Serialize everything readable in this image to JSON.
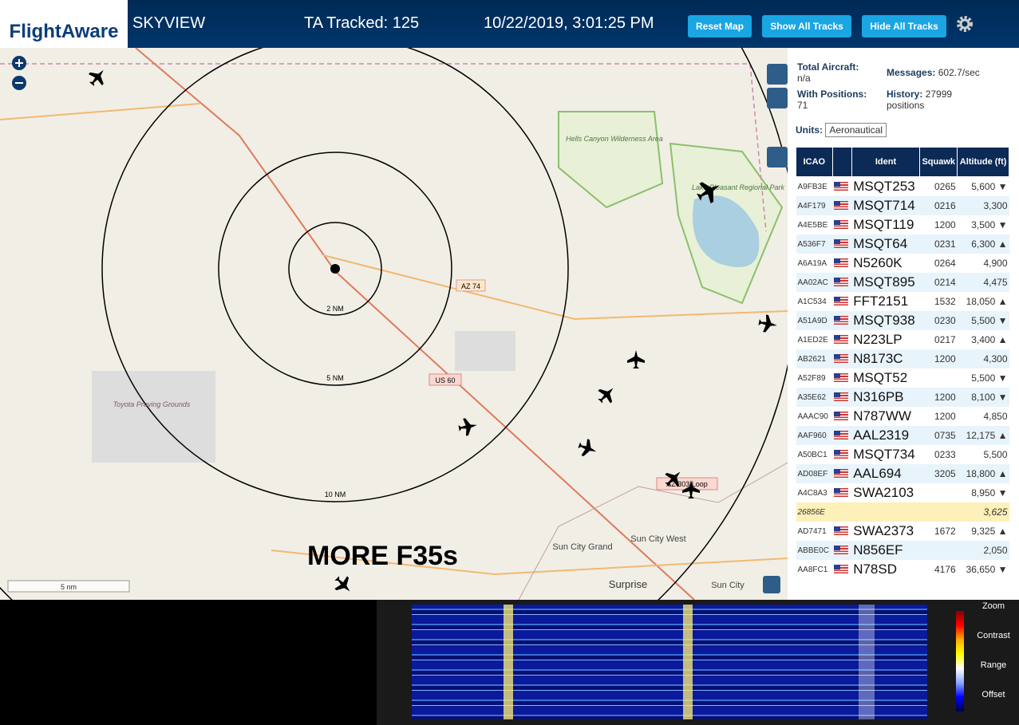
{
  "header": {
    "logo": "FlightAware",
    "app": "SKYVIEW",
    "tracked": "TA Tracked: 125",
    "datetime": "10/22/2019, 3:01:25 PM",
    "buttons": [
      "Reset Map",
      "Show All Tracks",
      "Hide All Tracks"
    ]
  },
  "map": {
    "labels": [
      "2 NM",
      "5 NM",
      "10 NM",
      "AZ 74",
      "US 60",
      "Hells Canyon Wilderness Area",
      "Lake Pleasant Regional Park",
      "Toyota Proving Grounds",
      "Sun City Grand",
      "Sun City West",
      "Surprise",
      "Sun City",
      "AZ 303 Loop",
      "MORE F35s",
      "5 nm"
    ]
  },
  "stats": {
    "total_label": "Total Aircraft:",
    "total": "n/a",
    "positions_label": "With Positions:",
    "positions": "71",
    "messages_label": "Messages:",
    "messages": "602.7/sec",
    "history_label": "History:",
    "history": "27999 positions",
    "units_label": "Units:",
    "units": "Aeronautical"
  },
  "table": {
    "columns": [
      "ICAO",
      "Ident",
      "Squawk",
      "Altitude (ft)"
    ],
    "rows": [
      {
        "icao": "A9FB3E",
        "ident": "MSQT253",
        "squawk": "0265",
        "altitude": "5,600",
        "trend": "▼"
      },
      {
        "icao": "A4F179",
        "ident": "MSQT714",
        "squawk": "0216",
        "altitude": "3,300"
      },
      {
        "icao": "A4E5BE",
        "ident": "MSQT119",
        "squawk": "1200",
        "altitude": "3,500",
        "trend": "▼"
      },
      {
        "icao": "A536F7",
        "ident": "MSQT64",
        "squawk": "0231",
        "altitude": "6,300",
        "trend": "▲"
      },
      {
        "icao": "A6A19A",
        "ident": "N5260K",
        "squawk": "0264",
        "altitude": "4,900"
      },
      {
        "icao": "AA02AC",
        "ident": "MSQT895",
        "squawk": "0214",
        "altitude": "4,475"
      },
      {
        "icao": "A1C534",
        "ident": "FFT2151",
        "squawk": "1532",
        "altitude": "18,050",
        "trend": "▲"
      },
      {
        "icao": "A51A9D",
        "ident": "MSQT938",
        "squawk": "0230",
        "altitude": "5,500",
        "trend": "▼"
      },
      {
        "icao": "A1ED2E",
        "ident": "N223LP",
        "squawk": "0217",
        "altitude": "3,400",
        "trend": "▲"
      },
      {
        "icao": "AB2621",
        "ident": "N8173C",
        "squawk": "1200",
        "altitude": "4,300"
      },
      {
        "icao": "A52F89",
        "ident": "MSQT52",
        "altitude": "5,500",
        "trend": "▼"
      },
      {
        "icao": "A35E62",
        "ident": "N316PB",
        "squawk": "1200",
        "altitude": "8,100",
        "trend": "▼"
      },
      {
        "icao": "AAAC90",
        "ident": "N787WW",
        "squawk": "1200",
        "altitude": "4,850"
      },
      {
        "icao": "AAF960",
        "ident": "AAL2319",
        "squawk": "0735",
        "altitude": "12,175",
        "trend": "▲"
      },
      {
        "icao": "A50BC1",
        "ident": "MSQT734",
        "squawk": "0233",
        "altitude": "5,500"
      },
      {
        "icao": "AD08EF",
        "ident": "AAL694",
        "squawk": "3205",
        "altitude": "18,800",
        "trend": "▲"
      },
      {
        "icao": "A4C8A3",
        "ident": "SWA2103",
        "altitude": "8,950",
        "trend": "▼"
      },
      {
        "icao": "26856E",
        "altitude": "3,625"
      },
      {
        "icao": "AD7471",
        "ident": "SWA2373",
        "squawk": "1672",
        "altitude": "9,325",
        "trend": "▲"
      },
      {
        "icao": "ABBE0C",
        "ident": "N856EF",
        "altitude": "2,050"
      },
      {
        "icao": "AA8FC1",
        "ident": "N78SD",
        "squawk": "4176",
        "altitude": "36,650",
        "trend": "▼"
      }
    ]
  },
  "spectrum": {
    "controls": [
      "Zoom",
      "Contrast",
      "Range",
      "Offset"
    ]
  }
}
